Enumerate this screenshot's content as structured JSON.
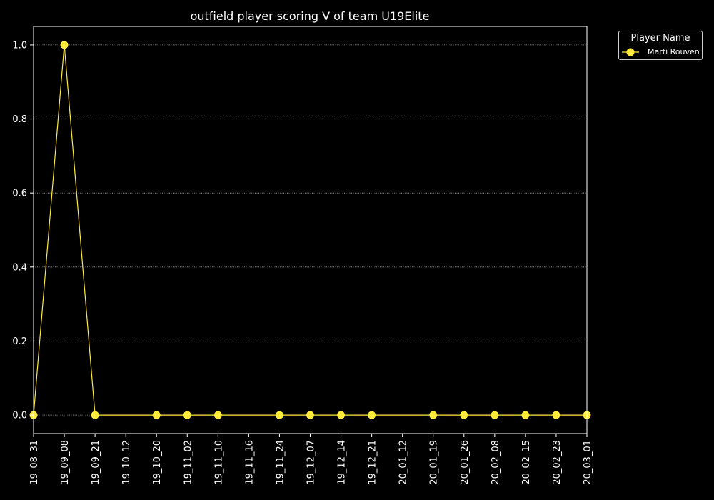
{
  "chart_data": {
    "type": "line",
    "title": "outfield player scoring V of team U19Elite",
    "xlabel": "",
    "ylabel": "",
    "categories": [
      "19_08_31",
      "19_09_08",
      "19_09_21",
      "19_10_12",
      "19_10_20",
      "19_11_02",
      "19_11_10",
      "19_11_16",
      "19_11_24",
      "19_12_07",
      "19_12_14",
      "19_12_21",
      "20_01_12",
      "20_01_19",
      "20_01_26",
      "20_02_08",
      "20_02_15",
      "20_02_23",
      "20_03_01"
    ],
    "series": [
      {
        "name": "Marti Rouven",
        "color": "#ffeb3b",
        "values": [
          0,
          1,
          0,
          null,
          0,
          0,
          0,
          null,
          0,
          0,
          0,
          0,
          null,
          0,
          0,
          0,
          0,
          0,
          0
        ]
      }
    ],
    "ylim": [
      -0.05,
      1.05
    ],
    "yticks": [
      0.0,
      0.2,
      0.4,
      0.6,
      0.8,
      1.0
    ],
    "ytick_labels": [
      "0.0",
      "0.2",
      "0.4",
      "0.6",
      "0.8",
      "1.0"
    ],
    "grid": "horizontal dotted",
    "legend": {
      "title": "Player Name",
      "placement": "outside top-right"
    },
    "background": "#000000"
  }
}
